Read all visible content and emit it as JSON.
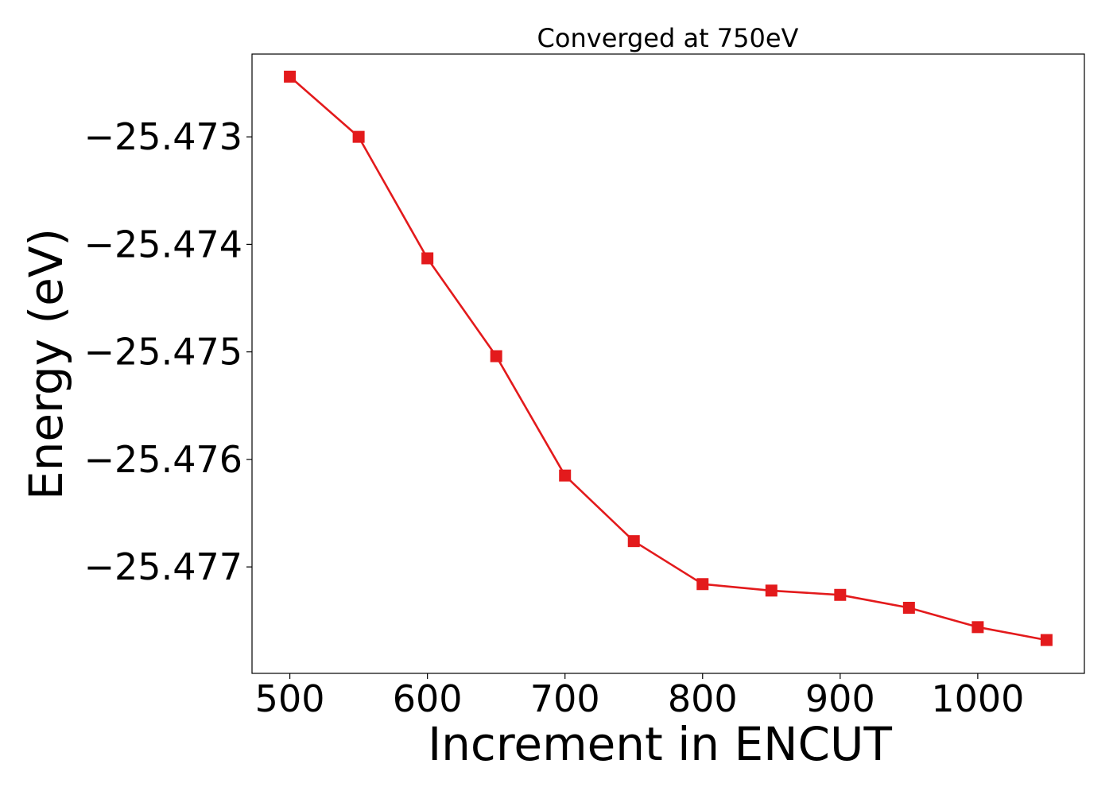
{
  "chart_data": {
    "type": "line",
    "title": "Converged at 750eV",
    "xlabel": "Increment in ENCUT",
    "ylabel": "Energy (eV)",
    "xlim": [
      472.5,
      1077.5
    ],
    "ylim": [
      -25.47799,
      -25.47223
    ],
    "xticks": [
      500,
      600,
      700,
      800,
      900,
      1000
    ],
    "xtick_labels": [
      "500",
      "600",
      "700",
      "800",
      "900",
      "1000"
    ],
    "yticks": [
      -25.473,
      -25.474,
      -25.475,
      -25.476,
      -25.477
    ],
    "ytick_labels": [
      "−25.473",
      "−25.474",
      "−25.475",
      "−25.476",
      "−25.477"
    ],
    "grid": false,
    "series": [
      {
        "color": "#e31a1c",
        "marker": "square",
        "x": [
          500,
          550,
          600,
          650,
          700,
          750,
          800,
          850,
          900,
          950,
          1000,
          1050
        ],
        "y": [
          -25.47244,
          -25.473,
          -25.47413,
          -25.47504,
          -25.47615,
          -25.47676,
          -25.47716,
          -25.47722,
          -25.47726,
          -25.47738,
          -25.47756,
          -25.47768
        ]
      }
    ]
  }
}
